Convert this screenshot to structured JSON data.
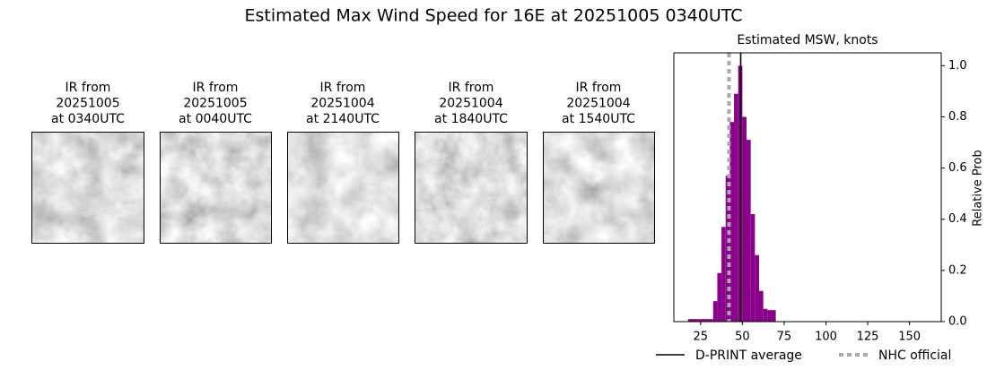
{
  "title": "Estimated Max Wind Speed for 16E at 20251005 0340UTC",
  "panels": [
    {
      "lines": [
        "IR from",
        "20251005",
        "at 0340UTC"
      ]
    },
    {
      "lines": [
        "IR from",
        "20251005",
        "at 0040UTC"
      ]
    },
    {
      "lines": [
        "IR from",
        "20251004",
        "at 2140UTC"
      ]
    },
    {
      "lines": [
        "IR from",
        "20251004",
        "at 1840UTC"
      ]
    },
    {
      "lines": [
        "IR from",
        "20251004",
        "at 1540UTC"
      ]
    }
  ],
  "chart_data": {
    "type": "histogram",
    "title": "Estimated MSW, knots",
    "y_label": "Relative Prob",
    "bins": [
      17.5,
      20,
      22.5,
      25,
      27.5,
      30,
      32.5,
      35,
      37.5,
      40,
      42.5,
      45,
      47.5,
      50,
      52.5,
      55,
      57.5,
      60,
      62.5,
      65,
      67.5,
      70
    ],
    "values": [
      0.01,
      0.01,
      0.01,
      0.01,
      0.01,
      0.01,
      0.08,
      0.19,
      0.37,
      0.57,
      0.78,
      0.89,
      1.0,
      0.8,
      0.71,
      0.42,
      0.26,
      0.12,
      0.05,
      0.045,
      0.045
    ],
    "color": "#8b008b",
    "lines": [
      {
        "name": "D-PRINT average",
        "value": 49,
        "color": "#000000",
        "style": "solid"
      },
      {
        "name": "NHC official",
        "value": 42,
        "color": "#a9a9a9",
        "style": "dotted"
      }
    ],
    "xlim": [
      9,
      169
    ],
    "xticks": [
      25,
      50,
      75,
      100,
      125,
      150
    ],
    "ylim": [
      0,
      1.05
    ],
    "yticks": [
      {
        "value": 0,
        "label": "0.0"
      },
      {
        "value": 0.2,
        "label": "0.2"
      },
      {
        "value": 0.4,
        "label": "0.4"
      },
      {
        "value": 0.6,
        "label": "0.6"
      },
      {
        "value": 0.8,
        "label": "0.8"
      },
      {
        "value": 1,
        "label": "1.0"
      }
    ],
    "legend": "bottom"
  }
}
